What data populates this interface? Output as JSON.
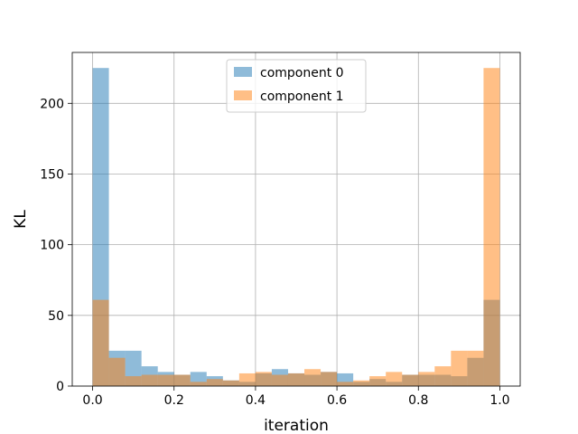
{
  "chart_data": {
    "type": "bar",
    "subtype": "overlapping-histogram",
    "xlabel": "iteration",
    "ylabel": "KL",
    "xlim": [
      -0.05,
      1.05
    ],
    "ylim": [
      0,
      236
    ],
    "xticks": [
      0.0,
      0.2,
      0.4,
      0.6,
      0.8,
      1.0
    ],
    "xtick_labels": [
      "0.0",
      "0.2",
      "0.4",
      "0.6",
      "0.8",
      "1.0"
    ],
    "yticks": [
      0,
      50,
      100,
      150,
      200
    ],
    "ytick_labels": [
      "0",
      "50",
      "100",
      "150",
      "200"
    ],
    "grid": true,
    "legend_position": "top-center",
    "bin_edges": [
      0.0,
      0.04,
      0.08,
      0.12,
      0.16,
      0.2,
      0.24,
      0.28,
      0.32,
      0.36,
      0.4,
      0.44,
      0.48,
      0.52,
      0.56,
      0.6,
      0.64,
      0.68,
      0.72,
      0.76,
      0.8,
      0.84,
      0.88,
      0.92,
      0.96,
      1.0
    ],
    "series": [
      {
        "name": "component 0",
        "color": "#1f77b4",
        "alpha": 0.5,
        "values": [
          225,
          25,
          25,
          14,
          10,
          8,
          10,
          7,
          4,
          3,
          9,
          12,
          9,
          8,
          10,
          9,
          3,
          5,
          3,
          8,
          8,
          8,
          7,
          20,
          61
        ]
      },
      {
        "name": "component 1",
        "color": "#ff7f0e",
        "alpha": 0.5,
        "values": [
          61,
          20,
          7,
          8,
          8,
          8,
          3,
          5,
          4,
          9,
          10,
          8,
          9,
          12,
          10,
          3,
          4,
          7,
          10,
          8,
          10,
          14,
          25,
          25,
          225
        ]
      }
    ]
  }
}
